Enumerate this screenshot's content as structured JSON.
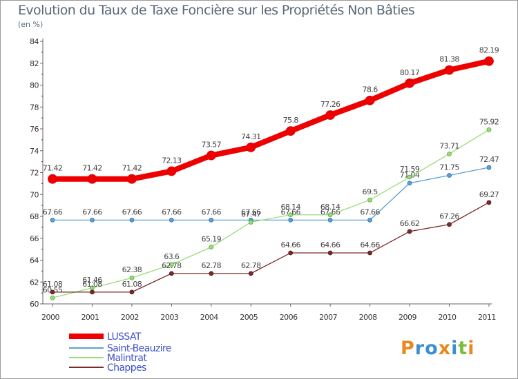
{
  "header": {
    "title": "Evolution du Taux de Taxe Foncière sur les Propriétés Non Bâties",
    "subtitle": "(en %)"
  },
  "brand": {
    "text": "Proxiti",
    "letters": [
      {
        "char": "P",
        "color": "#e8891c"
      },
      {
        "char": "r",
        "color": "#3c8fd0"
      },
      {
        "char": "o",
        "color": "#3c8fd0"
      },
      {
        "char": "x",
        "color": "#e8891c"
      },
      {
        "char": "i",
        "color": "#3c8fd0"
      },
      {
        "char": "t",
        "color": "#7cbc3c"
      },
      {
        "char": "i",
        "color": "#e8891c"
      }
    ]
  },
  "chart_data": {
    "type": "line",
    "x": [
      "2000",
      "2001",
      "2002",
      "2003",
      "2004",
      "2005",
      "2006",
      "2007",
      "2008",
      "2009",
      "2010",
      "2011"
    ],
    "ylim": [
      60,
      84
    ],
    "yticks": [
      60,
      62,
      64,
      66,
      68,
      70,
      72,
      74,
      76,
      78,
      80,
      82,
      84
    ],
    "grid": false,
    "legend_position": "bottom-left",
    "series": [
      {
        "name": "LUSSAT",
        "color": "#ee0000",
        "values": [
          71.42,
          71.42,
          71.42,
          72.13,
          73.57,
          74.31,
          75.8,
          77.26,
          78.6,
          80.17,
          81.38,
          82.19
        ],
        "labels": [
          "71.42",
          "71.42",
          "71.42",
          "72.13",
          "73.57",
          "74.31",
          "75.8",
          "77.26",
          "78.6",
          "80.17",
          "81.38",
          "82.19"
        ]
      },
      {
        "name": "Saint-Beauzire",
        "color": "#5b9fd4",
        "values": [
          67.66,
          67.66,
          67.66,
          67.66,
          67.66,
          67.66,
          67.66,
          67.66,
          67.66,
          71.04,
          71.75,
          72.47
        ],
        "labels": [
          "67.66",
          "67.66",
          "67.66",
          "67.66",
          "67.66",
          "67.66",
          "67.66",
          "67.66",
          "67.66",
          "71.04",
          "71.75",
          "72.47"
        ]
      },
      {
        "name": "Malintrat",
        "color": "#99dd77",
        "values": [
          60.55,
          61.46,
          62.38,
          63.6,
          65.19,
          67.47,
          68.14,
          68.14,
          69.5,
          71.59,
          73.71,
          75.92
        ],
        "labels": [
          "60.55",
          "61.46",
          "62.38",
          "63.6",
          "65.19",
          "67.47",
          "68.14",
          "68.14",
          "69.5",
          "71.59",
          "73.71",
          "75.92"
        ]
      },
      {
        "name": "Chappes",
        "color": "#7a2a2a",
        "values": [
          61.08,
          61.08,
          61.08,
          62.78,
          62.78,
          62.78,
          64.66,
          64.66,
          64.66,
          66.62,
          67.26,
          69.27
        ],
        "labels": [
          "61.08",
          "61.08",
          "61.08",
          "62.78",
          "62.78",
          "62.78",
          "64.66",
          "64.66",
          "64.66",
          "66.62",
          "67.26",
          "69.27"
        ]
      }
    ]
  }
}
